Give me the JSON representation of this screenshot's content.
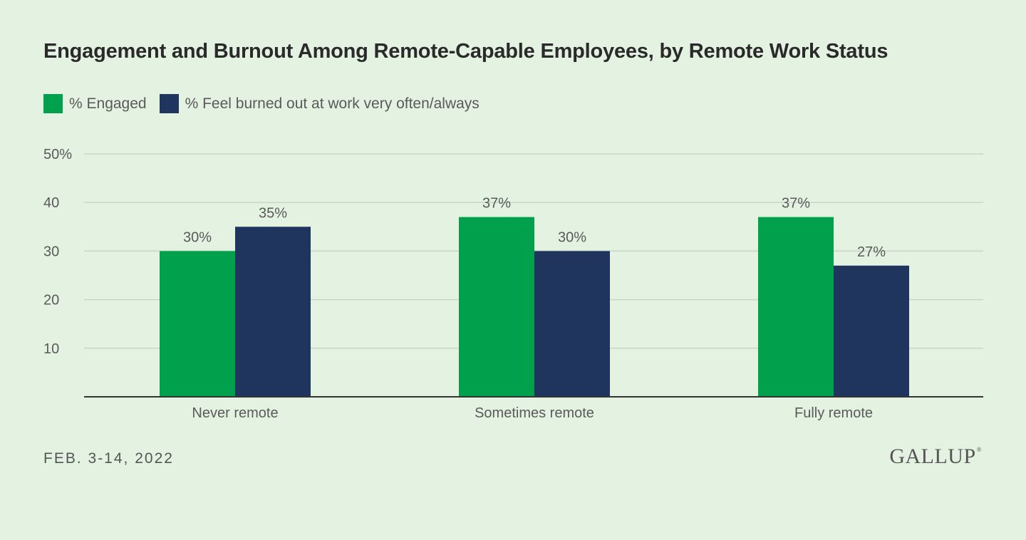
{
  "colors": {
    "background": "#e4f2e2",
    "engaged": "#00a04c",
    "burnout": "#1f355e",
    "grid": "#c9d6c7",
    "axis": "#333333",
    "label": "#5a5a5a"
  },
  "footer": {
    "date": "FEB. 3-14, 2022",
    "logo": "GALLUP",
    "logo_mark": "®"
  },
  "chart_data": {
    "type": "bar",
    "title": "Engagement and Burnout Among Remote-Capable Employees, by Remote Work Status",
    "xlabel": "",
    "ylabel": "",
    "ylim": [
      0,
      50
    ],
    "yticks": [
      10,
      20,
      30,
      40,
      50
    ],
    "ytick_labels": [
      "10",
      "20",
      "30",
      "40",
      "50%"
    ],
    "categories": [
      "Never remote",
      "Sometimes remote",
      "Fully remote"
    ],
    "series": [
      {
        "name": "% Engaged",
        "color_key": "engaged",
        "values": [
          30,
          37,
          37
        ],
        "labels": [
          "30%",
          "37%",
          "37%"
        ]
      },
      {
        "name": "% Feel burned out at work very often/always",
        "color_key": "burnout",
        "values": [
          35,
          30,
          27
        ],
        "labels": [
          "35%",
          "30%",
          "27%"
        ]
      }
    ],
    "legend_position": "top-left",
    "grid": true
  }
}
